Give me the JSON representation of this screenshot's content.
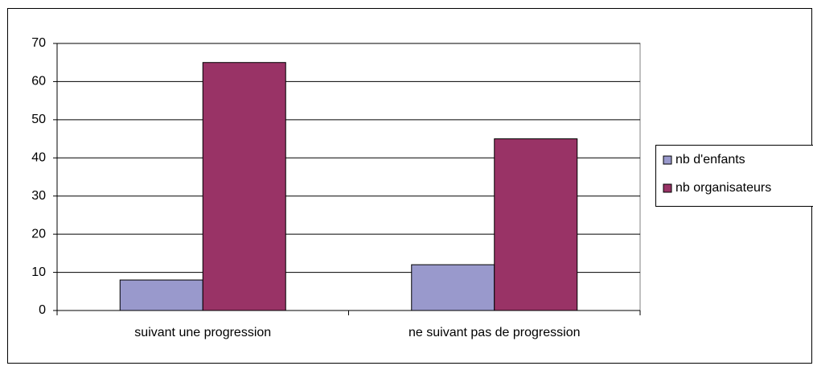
{
  "chart_data": {
    "type": "bar",
    "categories": [
      "suivant une progression",
      "ne suivant pas de progression"
    ],
    "series": [
      {
        "name": "nb d'enfants",
        "color": "#9999cc",
        "values": [
          8,
          12
        ]
      },
      {
        "name": "nb organisateurs",
        "color": "#993366",
        "values": [
          65,
          45
        ]
      }
    ],
    "ylim": [
      0,
      70
    ],
    "yticks": [
      0,
      10,
      20,
      30,
      40,
      50,
      60,
      70
    ],
    "grid": true,
    "legend": "right"
  }
}
